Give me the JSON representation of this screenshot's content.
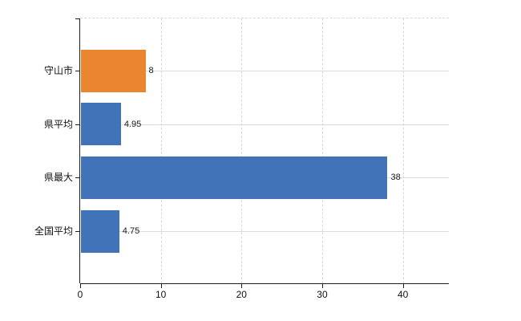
{
  "chart_data": {
    "type": "bar",
    "orientation": "horizontal",
    "title": "",
    "categories": [
      "守山市",
      "県平均",
      "県最大",
      "全国平均"
    ],
    "values": [
      8,
      4.95,
      38,
      4.75
    ],
    "value_labels": [
      "8",
      "4.95",
      "38",
      "4.75"
    ],
    "bar_colors": [
      "#eb8630",
      "#4173b8",
      "#4173b8",
      "#4173b8"
    ],
    "x_ticks": [
      0,
      10,
      20,
      30,
      40
    ],
    "x_tick_labels": [
      "0",
      "10",
      "20",
      "30",
      "40"
    ],
    "xlim": [
      0,
      45.7
    ],
    "grid": true,
    "legend": false,
    "colors": {
      "orange_series": "#eb8630",
      "blue_series": "#4173b8",
      "gridline_horizontal": "#d7ded7",
      "gridline_vertical": "#d2dad2",
      "plot_top_border": "#d9d9d9",
      "axis": "#1f1f1f",
      "text": "#111111",
      "background": "#ffffff"
    }
  }
}
